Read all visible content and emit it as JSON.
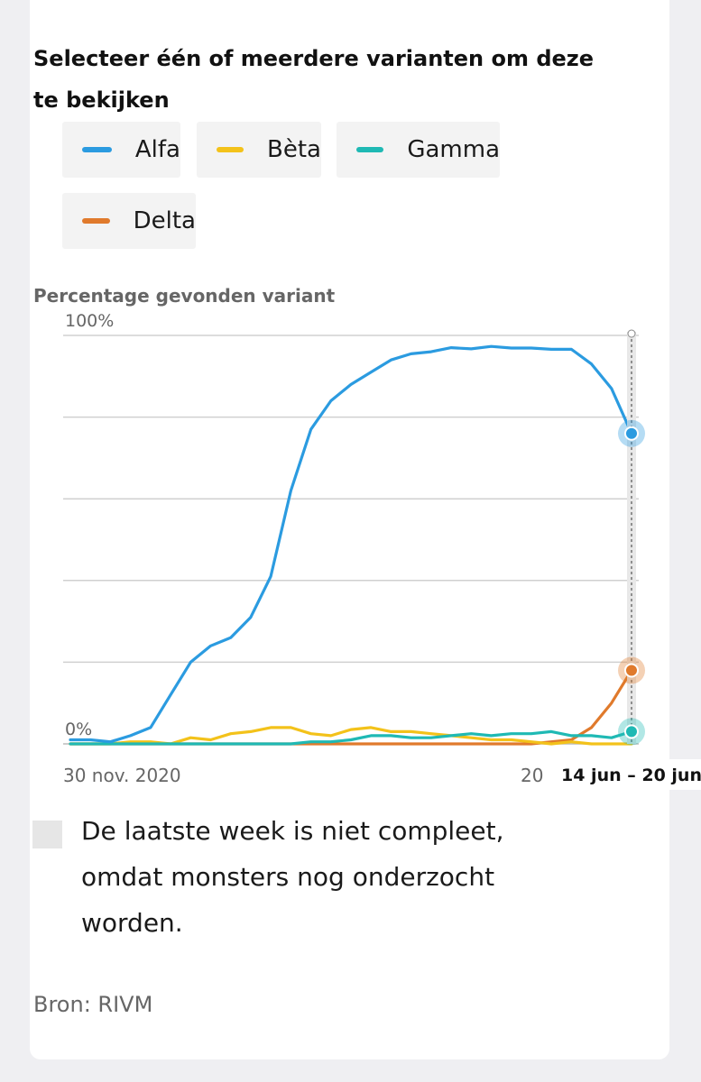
{
  "heading": "Selecteer één of meerdere varianten om deze te bekijken",
  "variants": [
    {
      "label": "Alfa",
      "color": "#2b9be0"
    },
    {
      "label": "Bèta",
      "color": "#f3c21a"
    },
    {
      "label": "Gamma",
      "color": "#1fb9b4"
    },
    {
      "label": "Delta",
      "color": "#e07a2c"
    }
  ],
  "y_axis_title": "Percentage gevonden variant",
  "note": "De laatste week is niet compleet, omdat monsters nog onderzocht worden.",
  "source": "Bron: RIVM",
  "chart_data": {
    "type": "line",
    "title": "",
    "ylabel": "Percentage gevonden variant",
    "ylim": [
      0,
      100
    ],
    "y_ticks": [
      0,
      20,
      40,
      60,
      80,
      100
    ],
    "y_tick_labels": [
      "0%",
      "",
      "",
      "",
      "",
      "100%"
    ],
    "x_tick_labels": [
      "30 nov. 2020",
      "20"
    ],
    "x_highlight_label": "14 jun – 20 jun",
    "grid": true,
    "x": [
      "2020-11-30",
      "2020-12-07",
      "2020-12-14",
      "2020-12-21",
      "2020-12-28",
      "2021-01-04",
      "2021-01-11",
      "2021-01-18",
      "2021-01-25",
      "2021-02-01",
      "2021-02-08",
      "2021-02-15",
      "2021-02-22",
      "2021-03-01",
      "2021-03-08",
      "2021-03-15",
      "2021-03-22",
      "2021-03-29",
      "2021-04-05",
      "2021-04-12",
      "2021-04-19",
      "2021-04-26",
      "2021-05-03",
      "2021-05-10",
      "2021-05-17",
      "2021-05-24",
      "2021-05-31",
      "2021-06-07",
      "2021-06-14"
    ],
    "series": [
      {
        "name": "Alfa",
        "color": "#2b9be0",
        "values": [
          1,
          1,
          0.5,
          2,
          4,
          12,
          20,
          24,
          26,
          31,
          41,
          62,
          77,
          84,
          88,
          91,
          94,
          95.5,
          96,
          97,
          96.7,
          97.3,
          96.9,
          96.9,
          96.6,
          96.6,
          93,
          87,
          76
        ]
      },
      {
        "name": "Bèta",
        "color": "#f3c21a",
        "values": [
          0,
          0,
          0,
          0.5,
          0.5,
          0,
          1.5,
          1,
          2.5,
          3,
          4,
          4,
          2.5,
          2,
          3.5,
          4,
          3,
          3,
          2.5,
          2,
          1.5,
          1,
          1,
          0.5,
          0,
          0.5,
          0,
          0,
          0
        ]
      },
      {
        "name": "Gamma",
        "color": "#1fb9b4",
        "values": [
          0,
          0,
          0,
          0,
          0,
          0,
          0,
          0,
          0,
          0,
          0,
          0,
          0.5,
          0.5,
          1,
          2,
          2,
          1.5,
          1.5,
          2,
          2.5,
          2,
          2.5,
          2.5,
          3,
          2,
          2,
          1.5,
          3
        ]
      },
      {
        "name": "Delta",
        "color": "#e07a2c",
        "values": [
          0,
          0,
          0,
          0,
          0,
          0,
          0,
          0,
          0,
          0,
          0,
          0,
          0,
          0,
          0,
          0,
          0,
          0,
          0,
          0,
          0,
          0,
          0,
          0,
          0.5,
          1,
          4,
          10,
          18
        ]
      }
    ]
  }
}
